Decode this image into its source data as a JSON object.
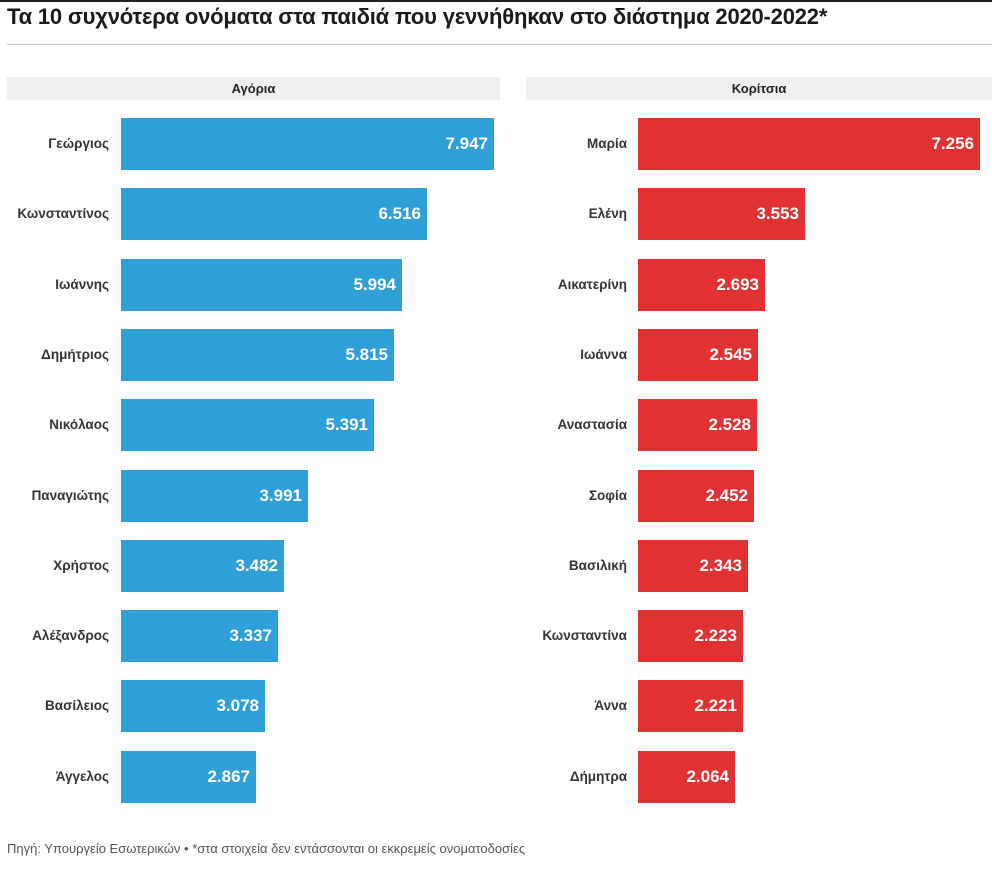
{
  "title": "Τα 10 συχνότερα ονόματα στα παιδιά που γεννήθηκαν στο διάστημα 2020-2022*",
  "footer": "Πηγή: Υπουργείο Εσωτερικών • *στα στοιχεία δεν εντάσσονται οι εκκρεμείς ονοματοδοσίες",
  "chart_data": [
    {
      "type": "bar",
      "orientation": "horizontal",
      "title": "Αγόρια",
      "color": "#2f9fd8",
      "categories": [
        "Γεώργιος",
        "Κωνσταντίνος",
        "Ιωάννης",
        "Δημήτριος",
        "Νικόλαος",
        "Παναγιώτης",
        "Χρήστος",
        "Αλέξανδρος",
        "Βασίλειος",
        "Άγγελος"
      ],
      "values": [
        7947,
        6516,
        5994,
        5815,
        5391,
        3991,
        3482,
        3337,
        3078,
        2867
      ],
      "value_labels": [
        "7.947",
        "6.516",
        "5.994",
        "5.815",
        "5.391",
        "3.991",
        "3.482",
        "3.337",
        "3.078",
        "2.867"
      ],
      "xlim": [
        0,
        7947
      ]
    },
    {
      "type": "bar",
      "orientation": "horizontal",
      "title": "Κορίτσια",
      "color": "#e03133",
      "categories": [
        "Μαρία",
        "Ελένη",
        "Αικατερίνη",
        "Ιωάννα",
        "Αναστασία",
        "Σοφία",
        "Βασιλική",
        "Κωνσταντίνα",
        "Άννα",
        "Δήμητρα"
      ],
      "values": [
        7256,
        3553,
        2693,
        2545,
        2528,
        2452,
        2343,
        2223,
        2221,
        2064
      ],
      "value_labels": [
        "7.256",
        "3.553",
        "2.693",
        "2.545",
        "2.528",
        "2.452",
        "2.343",
        "2.223",
        "2.221",
        "2.064"
      ],
      "xlim": [
        0,
        7256
      ]
    }
  ]
}
